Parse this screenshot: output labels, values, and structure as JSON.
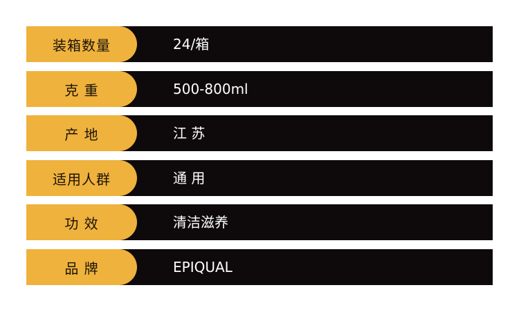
{
  "rows": [
    {
      "label": "装箱数量",
      "value": "24/箱"
    },
    {
      "label": "克 重",
      "value": "500-800ml"
    },
    {
      "label": "产 地",
      "value": "江 苏"
    },
    {
      "label": "适用人群",
      "value": "通 用"
    },
    {
      "label": "功 效",
      "value": "清洁滋养"
    },
    {
      "label": "品 牌",
      "value": "EPIQUAL"
    }
  ],
  "colors": {
    "label_bg": "#efb23d",
    "row_bg": "#0e0a0b"
  }
}
